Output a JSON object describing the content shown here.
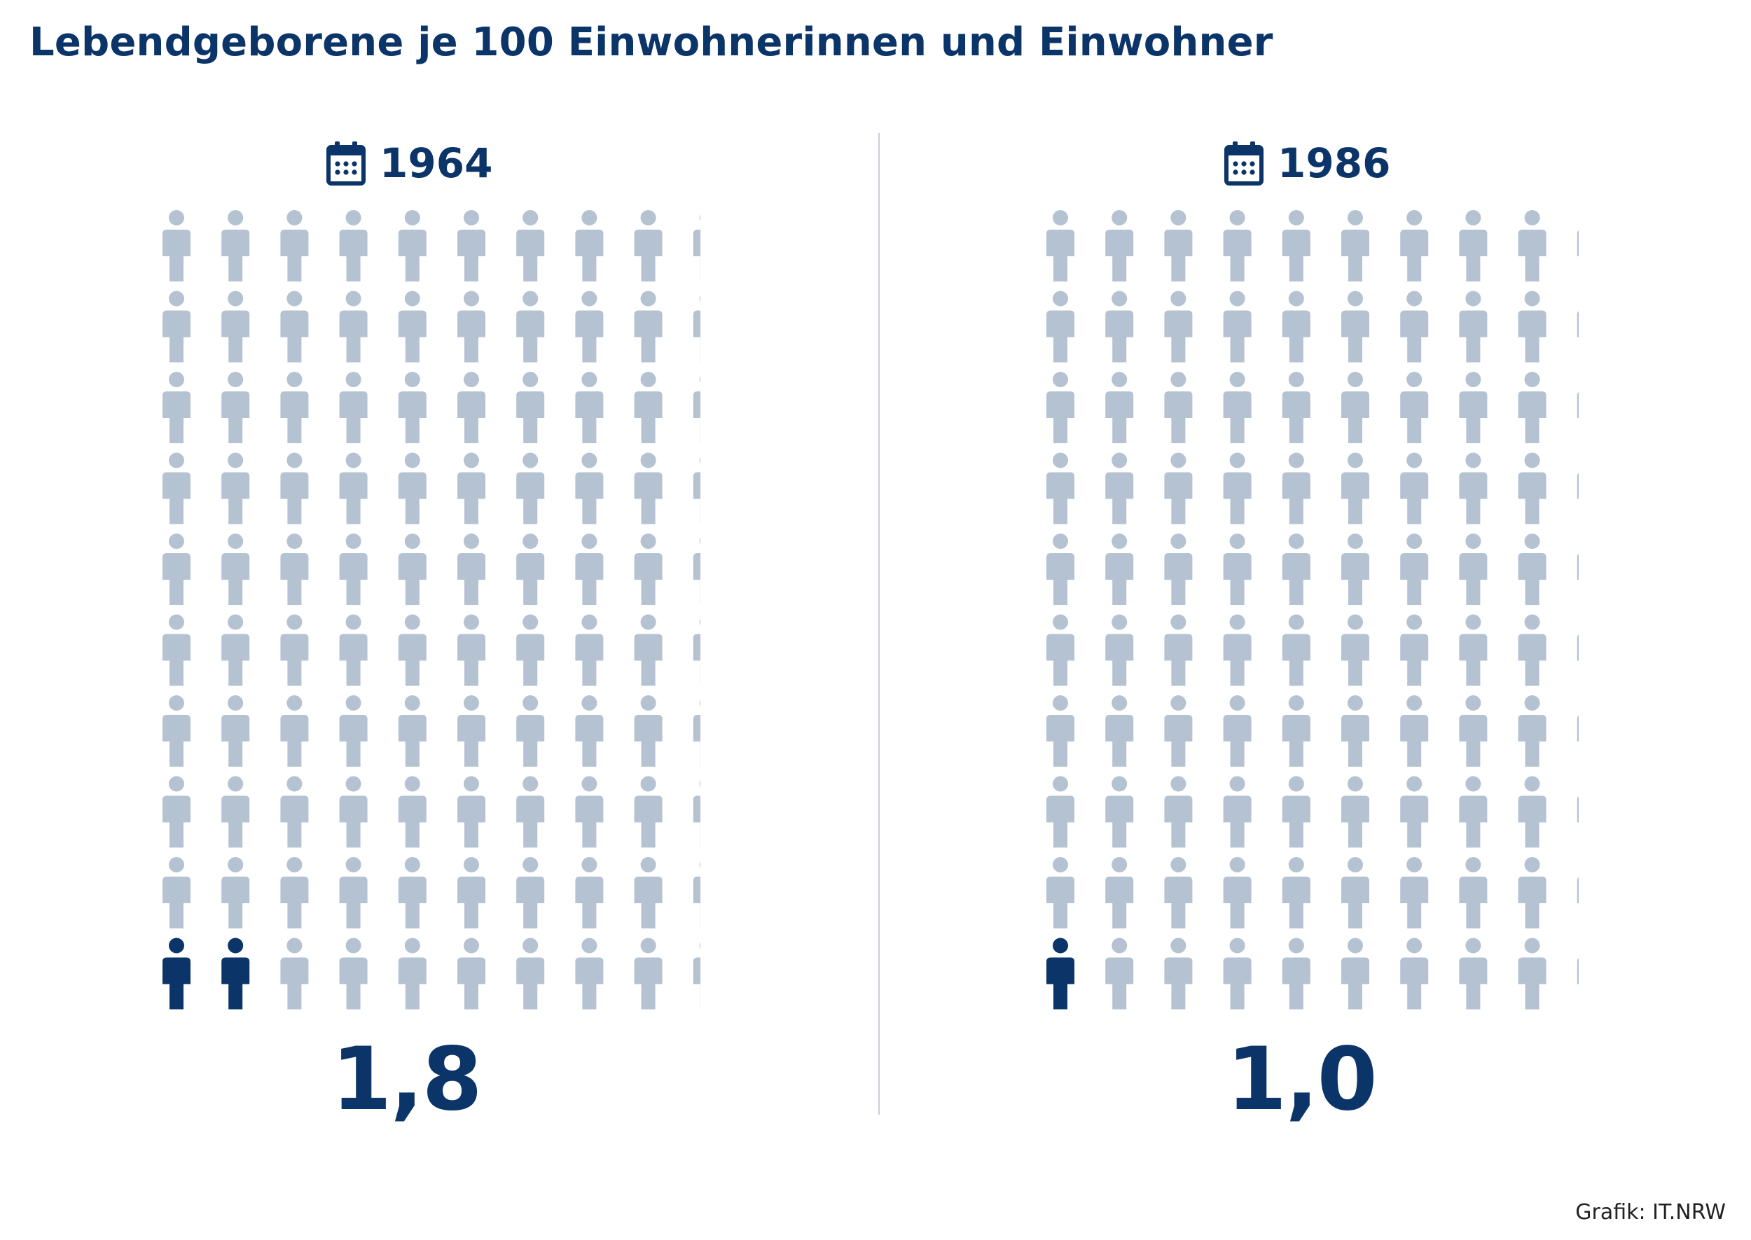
{
  "title": "Lebendgeborene je 100 Einwohnerinnen und Einwohner",
  "credit": "Grafik: IT.NRW",
  "colors": {
    "highlight": "#0b3468",
    "base": "#b4c2d2",
    "text": "#0b3468"
  },
  "icons": {
    "year": "calendar-icon",
    "unit": "person-icon"
  },
  "chart_data": [
    {
      "type": "pictogram",
      "category": "1964",
      "value": 1.8,
      "value_label": "1,8",
      "total_icons": 100,
      "grid": [
        10,
        10
      ],
      "highlighted_icons": 2
    },
    {
      "type": "pictogram",
      "category": "1986",
      "value": 1.0,
      "value_label": "1,0",
      "total_icons": 100,
      "grid": [
        10,
        10
      ],
      "highlighted_icons": 1
    }
  ]
}
